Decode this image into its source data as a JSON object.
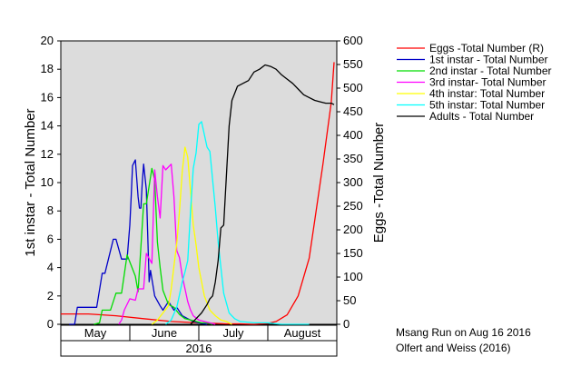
{
  "chart_data": {
    "type": "line",
    "xlim": [
      0,
      100
    ],
    "x_axis": {
      "months": [
        "May",
        "June",
        "July",
        "August"
      ],
      "year": "2016"
    },
    "y_left": {
      "label": "1st instar - Total Number",
      "ylim": [
        0,
        20
      ],
      "ticks": [
        "0",
        "2",
        "4",
        "6",
        "8",
        "10",
        "12",
        "14",
        "16",
        "18",
        "20"
      ]
    },
    "y_right": {
      "label": "Eggs -Total Number",
      "ylim": [
        0,
        600
      ],
      "ticks": [
        "0",
        "50",
        "100",
        "150",
        "200",
        "250",
        "300",
        "350",
        "400",
        "450",
        "500",
        "550",
        "600"
      ]
    },
    "grid": false,
    "legend_position": "top-right outside",
    "series": [
      {
        "name": "Eggs -Total Number (R)",
        "color": "#ff0000",
        "axis": "right",
        "x": [
          0,
          10,
          20,
          30,
          40,
          50,
          56,
          60,
          65,
          70,
          75,
          78,
          82,
          86,
          90,
          92,
          95,
          98,
          99
        ],
        "y": [
          22,
          22,
          18,
          12,
          6,
          3,
          2,
          1,
          1,
          0,
          2,
          6,
          20,
          60,
          140,
          220,
          340,
          470,
          555
        ]
      },
      {
        "name": "1st instar - Total Number",
        "color": "#0000c8",
        "axis": "left",
        "x": [
          3,
          5,
          6,
          13,
          15,
          16,
          19,
          20,
          22,
          24,
          25,
          25.5,
          26,
          27,
          28,
          28.5,
          29,
          29.5,
          30,
          31,
          32,
          32.5,
          34,
          36,
          37,
          39,
          41,
          42,
          44,
          46,
          48,
          50,
          53
        ],
        "y": [
          0,
          0,
          1.2,
          1.2,
          3.6,
          3.6,
          6.0,
          6.0,
          4.6,
          4.6,
          7.0,
          9.0,
          11.2,
          11.6,
          9.0,
          8.2,
          8.2,
          10.0,
          11.3,
          9.5,
          3.0,
          3.8,
          2.0,
          1.3,
          1.0,
          1.6,
          1.0,
          1.2,
          0.6,
          0.4,
          0.2,
          0.1,
          0
        ]
      },
      {
        "name": "2nd instar - Total Number",
        "color": "#00dd00",
        "axis": "left",
        "x": [
          12,
          14,
          15,
          18,
          20,
          22,
          24,
          27,
          28,
          30,
          31,
          33,
          34,
          35,
          36,
          37,
          39,
          40,
          41,
          43,
          45,
          47,
          49,
          51,
          53,
          55
        ],
        "y": [
          0,
          0.1,
          1.0,
          1.0,
          2.2,
          2.2,
          4.9,
          3.4,
          2.3,
          8.5,
          8.5,
          11.0,
          10.2,
          5.8,
          4.0,
          2.4,
          1.4,
          1.3,
          1.2,
          0.7,
          0.4,
          0.3,
          0.2,
          0.1,
          0.1,
          0
        ]
      },
      {
        "name": "3rd instar- Total Number",
        "color": "#ff00ff",
        "axis": "left",
        "x": [
          21,
          22,
          23,
          25,
          27,
          28,
          30,
          31,
          33,
          34,
          35,
          36,
          37,
          38,
          40,
          41,
          42,
          43,
          44,
          46,
          47,
          48,
          50,
          52,
          54,
          56
        ],
        "y": [
          0,
          0.3,
          1.0,
          1.8,
          1.7,
          2.5,
          2.5,
          5.0,
          4.3,
          10.9,
          9.0,
          7.5,
          11.2,
          10.9,
          11.3,
          9.0,
          5.2,
          4.7,
          3.4,
          1.6,
          1.0,
          0.6,
          0.3,
          0.2,
          0.1,
          0
        ]
      },
      {
        "name": "4th instar: Total Number",
        "color": "#ffff00",
        "axis": "left",
        "x": [
          33,
          35,
          37,
          39,
          40,
          41,
          42,
          43,
          44,
          45,
          46,
          48,
          49,
          50,
          52,
          54,
          56,
          58,
          60,
          62
        ],
        "y": [
          0,
          0.3,
          0.8,
          1.3,
          2.5,
          4.1,
          5.7,
          8.0,
          10.8,
          12.5,
          11.8,
          7.0,
          5.6,
          4.0,
          2.0,
          1.0,
          0.6,
          0.3,
          0.2,
          0
        ]
      },
      {
        "name": "5th instar: Total Number",
        "color": "#00ffff",
        "axis": "left",
        "x": [
          38,
          40,
          42,
          44,
          45,
          46,
          47,
          48,
          49,
          50,
          51,
          53,
          54,
          56,
          57,
          59,
          61,
          63,
          65,
          70,
          75,
          80,
          85,
          90
        ],
        "y": [
          0,
          0.3,
          1.2,
          3.0,
          3.7,
          4.5,
          8.0,
          11.0,
          12.1,
          14.1,
          14.3,
          12.5,
          12.2,
          8.2,
          5.8,
          2.2,
          0.8,
          0.4,
          0.2,
          0.1,
          0.1,
          0,
          0,
          0
        ]
      },
      {
        "name": "Adults - Total Number",
        "color": "#000000",
        "axis": "left",
        "x": [
          47,
          49,
          51,
          53,
          54,
          55,
          56,
          57,
          58,
          59,
          60,
          61,
          62,
          64,
          66,
          68,
          70,
          72,
          74,
          76,
          78,
          80,
          82,
          84,
          86,
          88,
          90,
          92,
          94,
          96,
          98,
          99
        ],
        "y": [
          0,
          0.4,
          0.8,
          1.4,
          1.8,
          2.0,
          3.0,
          4.5,
          6.8,
          7.0,
          10.5,
          14.0,
          15.8,
          16.8,
          17.0,
          17.2,
          17.8,
          18.0,
          18.3,
          18.2,
          18.0,
          17.6,
          17.3,
          17.0,
          16.6,
          16.2,
          16.0,
          15.8,
          15.7,
          15.6,
          15.6,
          15.5
        ]
      }
    ]
  },
  "footnote": {
    "line1": "Msang Run on Aug 16 2016",
    "line2": "Olfert and Weiss (2016)"
  }
}
